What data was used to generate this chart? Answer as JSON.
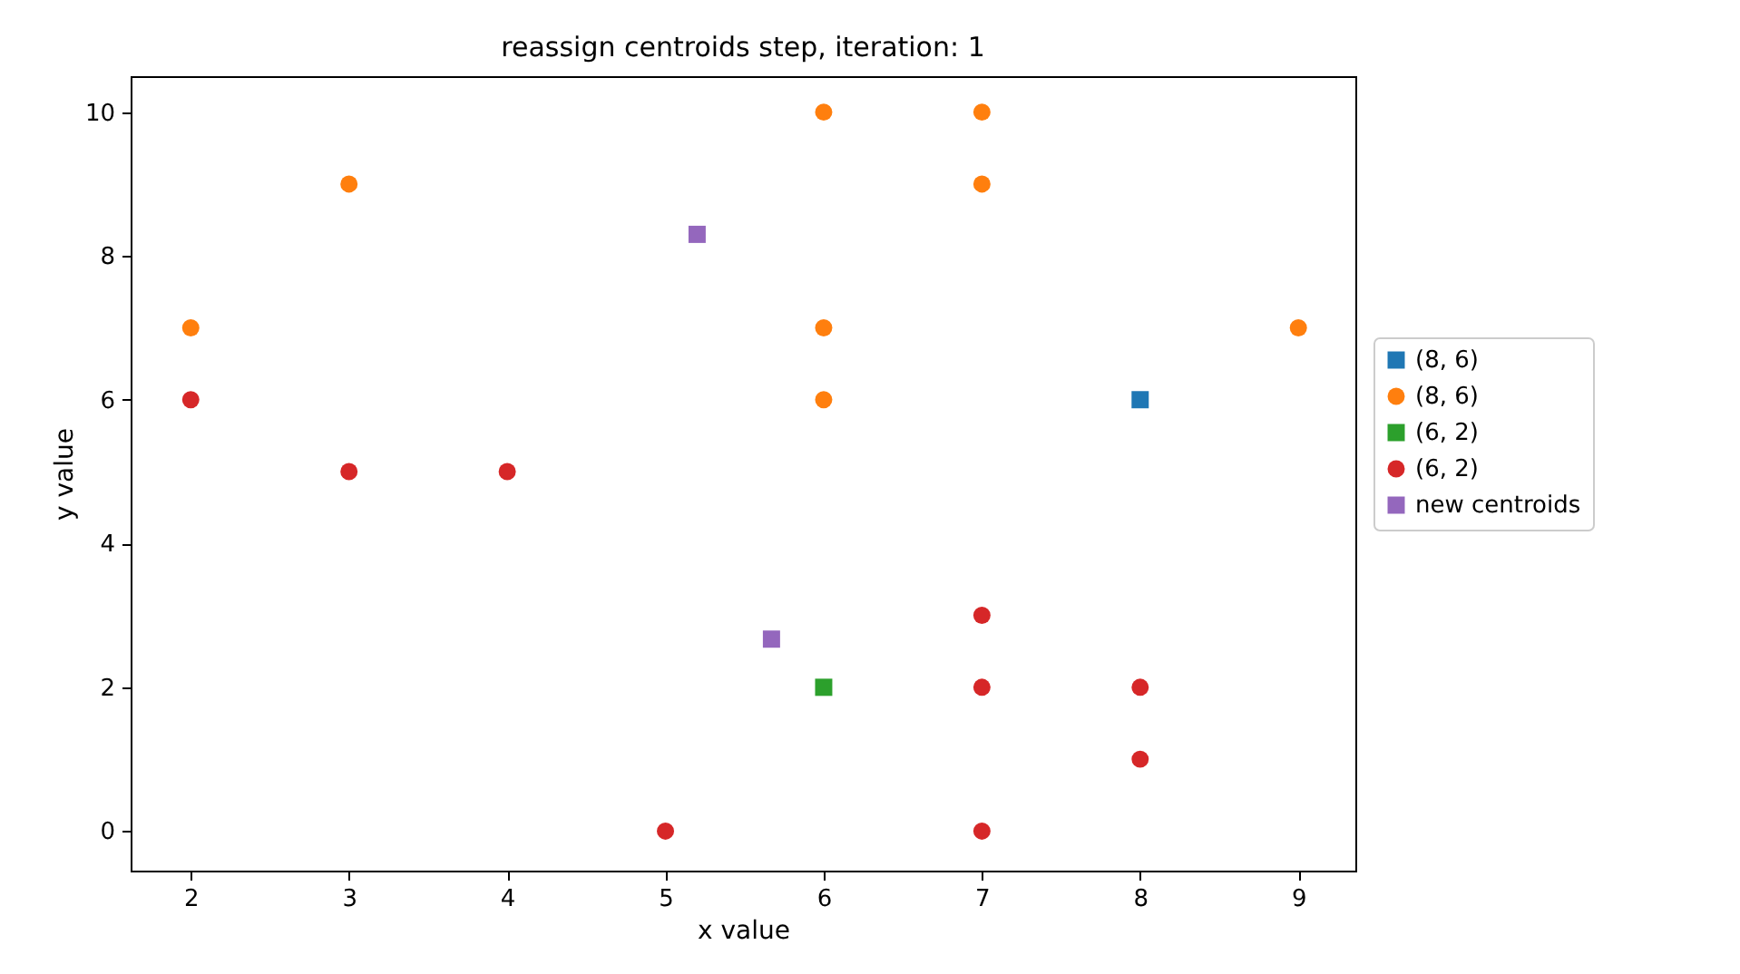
{
  "chart_data": {
    "type": "scatter",
    "title": "reassign centroids step, iteration: 1",
    "xlabel": "x value",
    "ylabel": "y value",
    "xlim": [
      1.62,
      9.36
    ],
    "ylim": [
      -0.55,
      10.5
    ],
    "xticks": [
      2,
      3,
      4,
      5,
      6,
      7,
      8,
      9
    ],
    "yticks": [
      0,
      2,
      4,
      6,
      8,
      10
    ],
    "grid": false,
    "legend": "right",
    "series": [
      {
        "name": "(8, 6)",
        "color": "#1f77b4",
        "marker": "square",
        "x": [
          8
        ],
        "values": [
          6
        ]
      },
      {
        "name": "(8, 6)",
        "color": "#ff7f0e",
        "marker": "circle",
        "x": [
          2,
          3,
          6,
          7,
          7,
          6,
          6,
          9
        ],
        "values": [
          7,
          9,
          10,
          10,
          9,
          7,
          6,
          7
        ]
      },
      {
        "name": "(6, 2)",
        "color": "#2ca02c",
        "marker": "square",
        "x": [
          6
        ],
        "values": [
          2
        ]
      },
      {
        "name": "(6, 2)",
        "color": "#d62728",
        "marker": "circle",
        "x": [
          2,
          3,
          4,
          7,
          7,
          8,
          8,
          5,
          7
        ],
        "values": [
          6,
          5,
          5,
          3,
          2,
          2,
          1,
          0,
          0
        ]
      },
      {
        "name": "new centroids",
        "color": "#9467bd",
        "marker": "square",
        "x": [
          5.2,
          5.67
        ],
        "values": [
          8.3,
          2.67
        ]
      }
    ]
  }
}
